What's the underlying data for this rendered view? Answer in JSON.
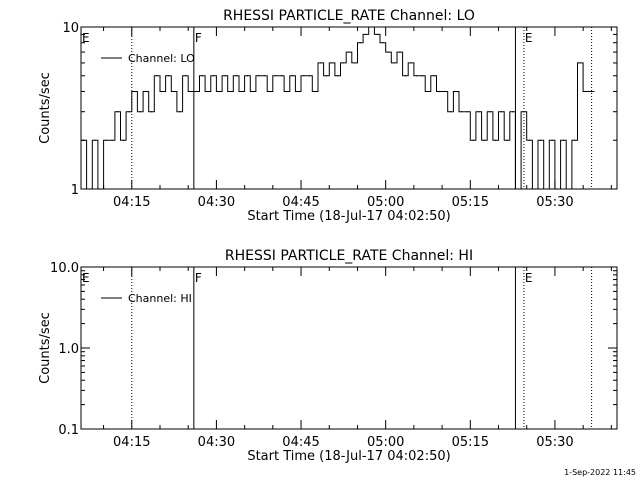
{
  "footer_timestamp": "1-Sep-2022 11:45",
  "chart_data": [
    {
      "type": "line",
      "title": "RHESSI PARTICLE_RATE Channel: LO",
      "xlabel": "Start Time (18-Jul-17 04:02:50)",
      "ylabel": "Counts/sec",
      "yscale": "log",
      "ylim": [
        1,
        10
      ],
      "xlim_minutes": [
        "04:06",
        "05:41"
      ],
      "xticks": [
        {
          "t": "04:15",
          "label": "04:15"
        },
        {
          "t": "04:30",
          "label": "04:30"
        },
        {
          "t": "04:45",
          "label": "04:45"
        },
        {
          "t": "05:00",
          "label": "05:00"
        },
        {
          "t": "05:15",
          "label": "05:15"
        },
        {
          "t": "05:30",
          "label": "05:30"
        }
      ],
      "yticks": [
        {
          "v": 1,
          "label": "1"
        },
        {
          "v": 10,
          "label": "10"
        }
      ],
      "legend": {
        "label": "Channel: LO",
        "position": "top-left"
      },
      "markers": [
        {
          "t": "04:06",
          "label": "E",
          "style": "solid"
        },
        {
          "t": "04:15",
          "label": "",
          "style": "dotted"
        },
        {
          "t": "04:26",
          "label": "F",
          "style": "solid"
        },
        {
          "t": "05:23",
          "label": "",
          "style": "solid"
        },
        {
          "t": "05:24.5",
          "label": "E",
          "style": "dotted"
        },
        {
          "t": "05:36.5",
          "label": "",
          "style": "dotted"
        }
      ],
      "series": [
        {
          "name": "Channel: LO",
          "points": [
            [
              "04:06",
              2
            ],
            [
              "04:07",
              1
            ],
            [
              "04:08",
              2
            ],
            [
              "04:09",
              1
            ],
            [
              "04:10",
              2
            ],
            [
              "04:11",
              2
            ],
            [
              "04:12",
              3
            ],
            [
              "04:13",
              2
            ],
            [
              "04:14",
              3
            ],
            [
              "04:15",
              4
            ],
            [
              "04:16",
              3
            ],
            [
              "04:17",
              4
            ],
            [
              "04:18",
              3
            ],
            [
              "04:19",
              5
            ],
            [
              "04:20",
              4
            ],
            [
              "04:21",
              5
            ],
            [
              "04:22",
              4
            ],
            [
              "04:23",
              3
            ],
            [
              "04:24",
              5
            ],
            [
              "04:25",
              4
            ],
            [
              "04:26",
              4
            ],
            [
              "04:27",
              5
            ],
            [
              "04:28",
              4
            ],
            [
              "04:29",
              5
            ],
            [
              "04:30",
              4
            ],
            [
              "04:31",
              5
            ],
            [
              "04:32",
              4
            ],
            [
              "04:33",
              5
            ],
            [
              "04:34",
              4
            ],
            [
              "04:35",
              5
            ],
            [
              "04:36",
              4
            ],
            [
              "04:37",
              5
            ],
            [
              "04:38",
              5
            ],
            [
              "04:39",
              4
            ],
            [
              "04:40",
              5
            ],
            [
              "04:41",
              5
            ],
            [
              "04:42",
              4
            ],
            [
              "04:43",
              5
            ],
            [
              "04:44",
              4
            ],
            [
              "04:45",
              5
            ],
            [
              "04:46",
              5
            ],
            [
              "04:47",
              4
            ],
            [
              "04:48",
              6
            ],
            [
              "04:49",
              5
            ],
            [
              "04:50",
              6
            ],
            [
              "04:51",
              5
            ],
            [
              "04:52",
              6
            ],
            [
              "04:53",
              7
            ],
            [
              "04:54",
              6
            ],
            [
              "04:55",
              8
            ],
            [
              "04:56",
              9
            ],
            [
              "04:57",
              10
            ],
            [
              "04:58",
              9
            ],
            [
              "04:59",
              8
            ],
            [
              "05:00",
              7
            ],
            [
              "05:01",
              6
            ],
            [
              "05:02",
              7
            ],
            [
              "05:03",
              5
            ],
            [
              "05:04",
              6
            ],
            [
              "05:05",
              5
            ],
            [
              "05:06",
              5
            ],
            [
              "05:07",
              4
            ],
            [
              "05:08",
              5
            ],
            [
              "05:09",
              4
            ],
            [
              "05:10",
              4
            ],
            [
              "05:11",
              3
            ],
            [
              "05:12",
              4
            ],
            [
              "05:13",
              3
            ],
            [
              "05:14",
              3
            ],
            [
              "05:15",
              2
            ],
            [
              "05:16",
              3
            ],
            [
              "05:17",
              2
            ],
            [
              "05:18",
              3
            ],
            [
              "05:19",
              2
            ],
            [
              "05:20",
              3
            ],
            [
              "05:21",
              2
            ],
            [
              "05:22",
              3
            ],
            [
              "05:23",
              1
            ],
            [
              "05:24",
              3
            ],
            [
              "05:25",
              2
            ],
            [
              "05:26",
              1
            ],
            [
              "05:27",
              2
            ],
            [
              "05:28",
              1
            ],
            [
              "05:29",
              2
            ],
            [
              "05:30",
              1
            ],
            [
              "05:31",
              2
            ],
            [
              "05:32",
              1
            ],
            [
              "05:33",
              2
            ],
            [
              "05:34",
              6
            ],
            [
              "05:35",
              4
            ],
            [
              "05:36",
              4
            ]
          ]
        }
      ]
    },
    {
      "type": "line",
      "title": "RHESSI PARTICLE_RATE Channel: HI",
      "xlabel": "Start Time (18-Jul-17 04:02:50)",
      "ylabel": "Counts/sec",
      "yscale": "log",
      "ylim": [
        0.1,
        10
      ],
      "xlim_minutes": [
        "04:06",
        "05:41"
      ],
      "xticks": [
        {
          "t": "04:15",
          "label": "04:15"
        },
        {
          "t": "04:30",
          "label": "04:30"
        },
        {
          "t": "04:45",
          "label": "04:45"
        },
        {
          "t": "05:00",
          "label": "05:00"
        },
        {
          "t": "05:15",
          "label": "05:15"
        },
        {
          "t": "05:30",
          "label": "05:30"
        }
      ],
      "yticks": [
        {
          "v": 0.1,
          "label": "0.1"
        },
        {
          "v": 1,
          "label": "1.0"
        },
        {
          "v": 10,
          "label": "10.0"
        }
      ],
      "legend": {
        "label": "Channel: HI",
        "position": "top-left"
      },
      "markers": [
        {
          "t": "04:06",
          "label": "E",
          "style": "solid"
        },
        {
          "t": "04:15",
          "label": "",
          "style": "dotted"
        },
        {
          "t": "04:26",
          "label": "F",
          "style": "solid"
        },
        {
          "t": "05:23",
          "label": "",
          "style": "solid"
        },
        {
          "t": "05:24.5",
          "label": "E",
          "style": "dotted"
        },
        {
          "t": "05:36.5",
          "label": "",
          "style": "dotted"
        }
      ],
      "series": [
        {
          "name": "Channel: HI",
          "points": []
        }
      ]
    }
  ]
}
